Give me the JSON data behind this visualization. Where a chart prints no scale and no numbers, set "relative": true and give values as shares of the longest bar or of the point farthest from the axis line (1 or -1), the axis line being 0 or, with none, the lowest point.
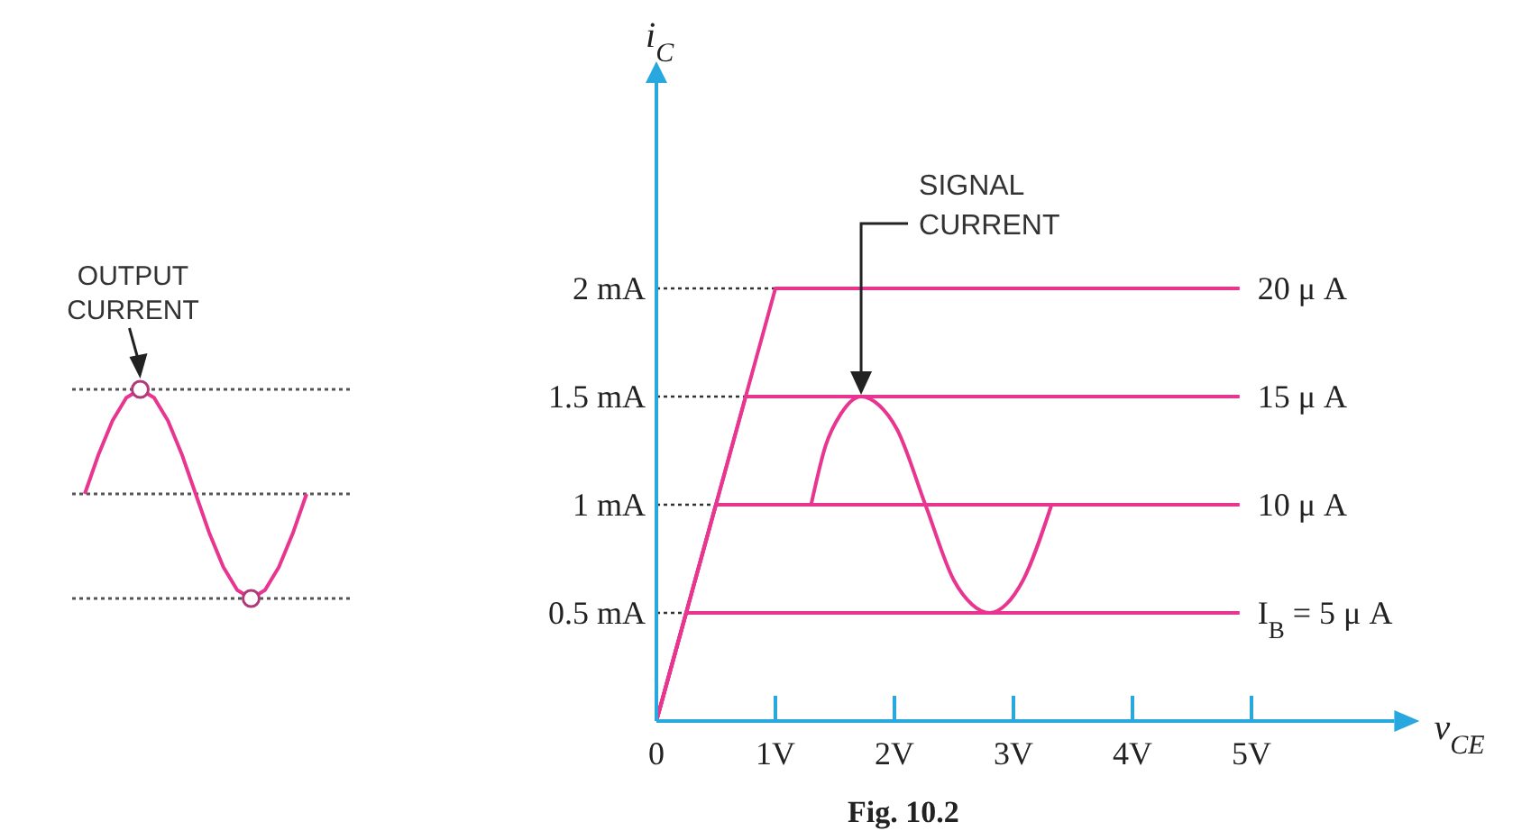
{
  "chart_data": [
    {
      "type": "line",
      "relative": true,
      "categories": [
        null,
        null,
        null,
        null,
        null,
        null,
        null,
        null,
        null,
        null,
        null,
        null,
        null,
        null,
        null,
        null,
        null
      ],
      "series": [
        {
          "color": "#e8358f",
          "values": [
            0.5,
            0.69,
            0.85,
            0.96,
            1,
            0.96,
            0.85,
            0.69,
            0.5,
            0.31,
            0.15,
            0.04,
            0,
            0.04,
            0.15,
            0.31,
            0.5
          ]
        }
      ],
      "ref_lines": [
        {
          "axis": "y",
          "value": 1,
          "line_style": "dotted",
          "color": "#555555"
        },
        {
          "axis": "y",
          "value": 0.5,
          "line_style": "dotted",
          "color": "#555555"
        },
        {
          "axis": "y",
          "value": 0,
          "line_style": "dotted",
          "color": "#555555"
        }
      ],
      "annotations": [
        "OUTPUT\nCURRENT"
      ]
    },
    {
      "type": "line",
      "legend": false,
      "marker": "none",
      "xlabel": "v$_{CE}$",
      "ylabel": "i$_{C}$",
      "xlim": [
        0,
        6.2
      ],
      "ylim": [
        0,
        2.95
      ],
      "xticks": [
        0,
        {
          "value": 1,
          "label": "1V"
        },
        {
          "value": 2,
          "label": "2V"
        },
        {
          "value": 3,
          "label": "3V"
        },
        {
          "value": 4,
          "label": "4V"
        },
        {
          "value": 5,
          "label": "5V"
        }
      ],
      "yticks": [
        {
          "value": 0.5,
          "label": "0.5 mA"
        },
        {
          "value": 1,
          "label": "1 mA"
        },
        {
          "value": 1.5,
          "label": "1.5 mA"
        },
        {
          "value": 2,
          "label": "2 mA"
        }
      ],
      "series": [
        {
          "name": "I$_{B}$ = 5 μ A",
          "color": "#e8358f",
          "x": [
            0,
            0.25,
            4.9
          ],
          "values": [
            0,
            0.5,
            0.5
          ]
        },
        {
          "name": "10 μ A",
          "color": "#e8358f",
          "x": [
            0,
            0.5,
            4.9
          ],
          "values": [
            0,
            1,
            1
          ]
        },
        {
          "name": "15 μ A",
          "color": "#e8358f",
          "x": [
            0,
            0.75,
            4.9
          ],
          "values": [
            0,
            1.5,
            1.5
          ]
        },
        {
          "name": "20 μ A",
          "color": "#e8358f",
          "x": [
            0,
            1,
            4.9
          ],
          "values": [
            0,
            2,
            2
          ]
        },
        {
          "color": "#e8358f",
          "x": [
            1.3,
            1.42,
            1.55,
            1.72,
            1.87,
            2.02,
            2.26,
            2.5,
            2.65,
            2.8,
            2.94,
            3.08,
            3.32
          ],
          "values": [
            1,
            1.27,
            1.42,
            1.5,
            1.46,
            1.35,
            1,
            0.65,
            0.54,
            0.5,
            0.54,
            0.65,
            1
          ]
        }
      ],
      "annotations": [
        "SIGNAL\nCURRENT",
        "Fig. 10.2"
      ]
    }
  ]
}
